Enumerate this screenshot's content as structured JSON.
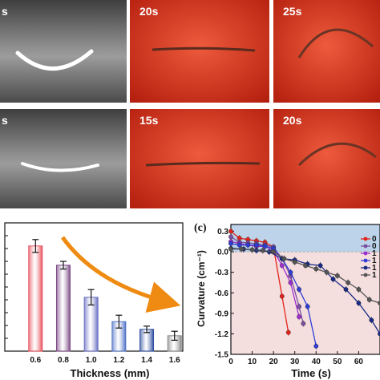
{
  "photos": {
    "top_row": [
      {
        "time": "s",
        "scene": "white strip, U-shaped curve",
        "color": "#5f5f5f"
      },
      {
        "time": "20s",
        "scene": "strip flattened",
        "color": "#d8331f"
      },
      {
        "time": "25s",
        "scene": "strip curled upward",
        "color": "#d8331f"
      }
    ],
    "bottom_row": [
      {
        "time": "s",
        "scene": "white strip, shallow curve",
        "color": "#5f5f5f"
      },
      {
        "time": "15s",
        "scene": "strip flattened",
        "color": "#d8331f"
      },
      {
        "time": "20s",
        "scene": "strip curled upward",
        "color": "#d8331f"
      }
    ]
  },
  "chart_data": [
    {
      "type": "bar",
      "xlabel": "Thickness (mm)",
      "categories": [
        "0.6",
        "0.8",
        "1.0",
        "1.2",
        "1.4",
        "1.6"
      ],
      "values": [
        8.2,
        6.7,
        4.2,
        2.3,
        1.7,
        1.2
      ],
      "errors": [
        0.5,
        0.3,
        0.6,
        0.5,
        0.25,
        0.35
      ],
      "ylim": [
        0,
        10
      ],
      "colors": [
        "#e8525d",
        "#7c4a86",
        "#6a6ec2",
        "#4f72c6",
        "#2f4fa0",
        "#8a8a8a"
      ],
      "arrow_color": "#ef8b12"
    },
    {
      "type": "line",
      "panel_label": "(c)",
      "xlabel": "Time (s)",
      "ylabel": "Curvature (cm⁻¹)",
      "xlim": [
        0,
        70
      ],
      "ylim": [
        -1.5,
        0.4
      ],
      "xticks": [
        "0",
        "10",
        "20",
        "30",
        "40",
        "50",
        "60"
      ],
      "yticks": [
        "0.3",
        "0.0",
        "-0.3",
        "-0.6",
        "-0.9",
        "-1.2",
        "-1.5"
      ],
      "upper_band_color": "#bcd3ea",
      "lower_band_color": "#f5dede",
      "legend_entries": [
        "0",
        "0",
        "1",
        "1",
        "1",
        "1"
      ],
      "series": [
        {
          "color": "#e2231a",
          "x": [
            0,
            4,
            8,
            12,
            16,
            20,
            24,
            27
          ],
          "y": [
            0.3,
            0.2,
            0.18,
            0.16,
            0.14,
            0.07,
            -0.65,
            -1.18
          ]
        },
        {
          "color": "#7a4fa0",
          "x": [
            0,
            4,
            8,
            12,
            16,
            20,
            24,
            28,
            32,
            34
          ],
          "y": [
            0.22,
            0.14,
            0.13,
            0.12,
            0.1,
            0.07,
            -0.1,
            -0.35,
            -0.8,
            -1.05
          ]
        },
        {
          "color": "#9e2fd0",
          "x": [
            0,
            4,
            8,
            12,
            16,
            20,
            24,
            28,
            32
          ],
          "y": [
            0.15,
            0.12,
            0.1,
            0.08,
            0.08,
            0.02,
            -0.2,
            -0.45,
            -0.95
          ]
        },
        {
          "color": "#2e3dd8",
          "x": [
            0,
            4,
            8,
            12,
            16,
            20,
            24,
            28,
            32,
            36,
            40
          ],
          "y": [
            0.12,
            0.1,
            0.1,
            0.1,
            0.08,
            0.05,
            -0.1,
            -0.3,
            -0.55,
            -0.8,
            -1.38
          ]
        },
        {
          "color": "#172a86",
          "x": [
            0,
            6,
            12,
            18,
            24,
            30,
            36,
            42,
            48,
            54,
            60,
            66,
            70
          ],
          "y": [
            0.05,
            0.04,
            0.02,
            0.0,
            -0.1,
            -0.12,
            -0.18,
            -0.2,
            -0.4,
            -0.55,
            -0.75,
            -1.0,
            -1.2
          ]
        },
        {
          "color": "#555555",
          "x": [
            0,
            5,
            10,
            15,
            20,
            25,
            30,
            35,
            40,
            45,
            50,
            55,
            60,
            65,
            70
          ],
          "y": [
            0.04,
            0.04,
            0.03,
            0.02,
            0.0,
            -0.1,
            -0.15,
            -0.2,
            -0.25,
            -0.3,
            -0.35,
            -0.45,
            -0.55,
            -0.7,
            -0.75
          ]
        }
      ]
    }
  ]
}
